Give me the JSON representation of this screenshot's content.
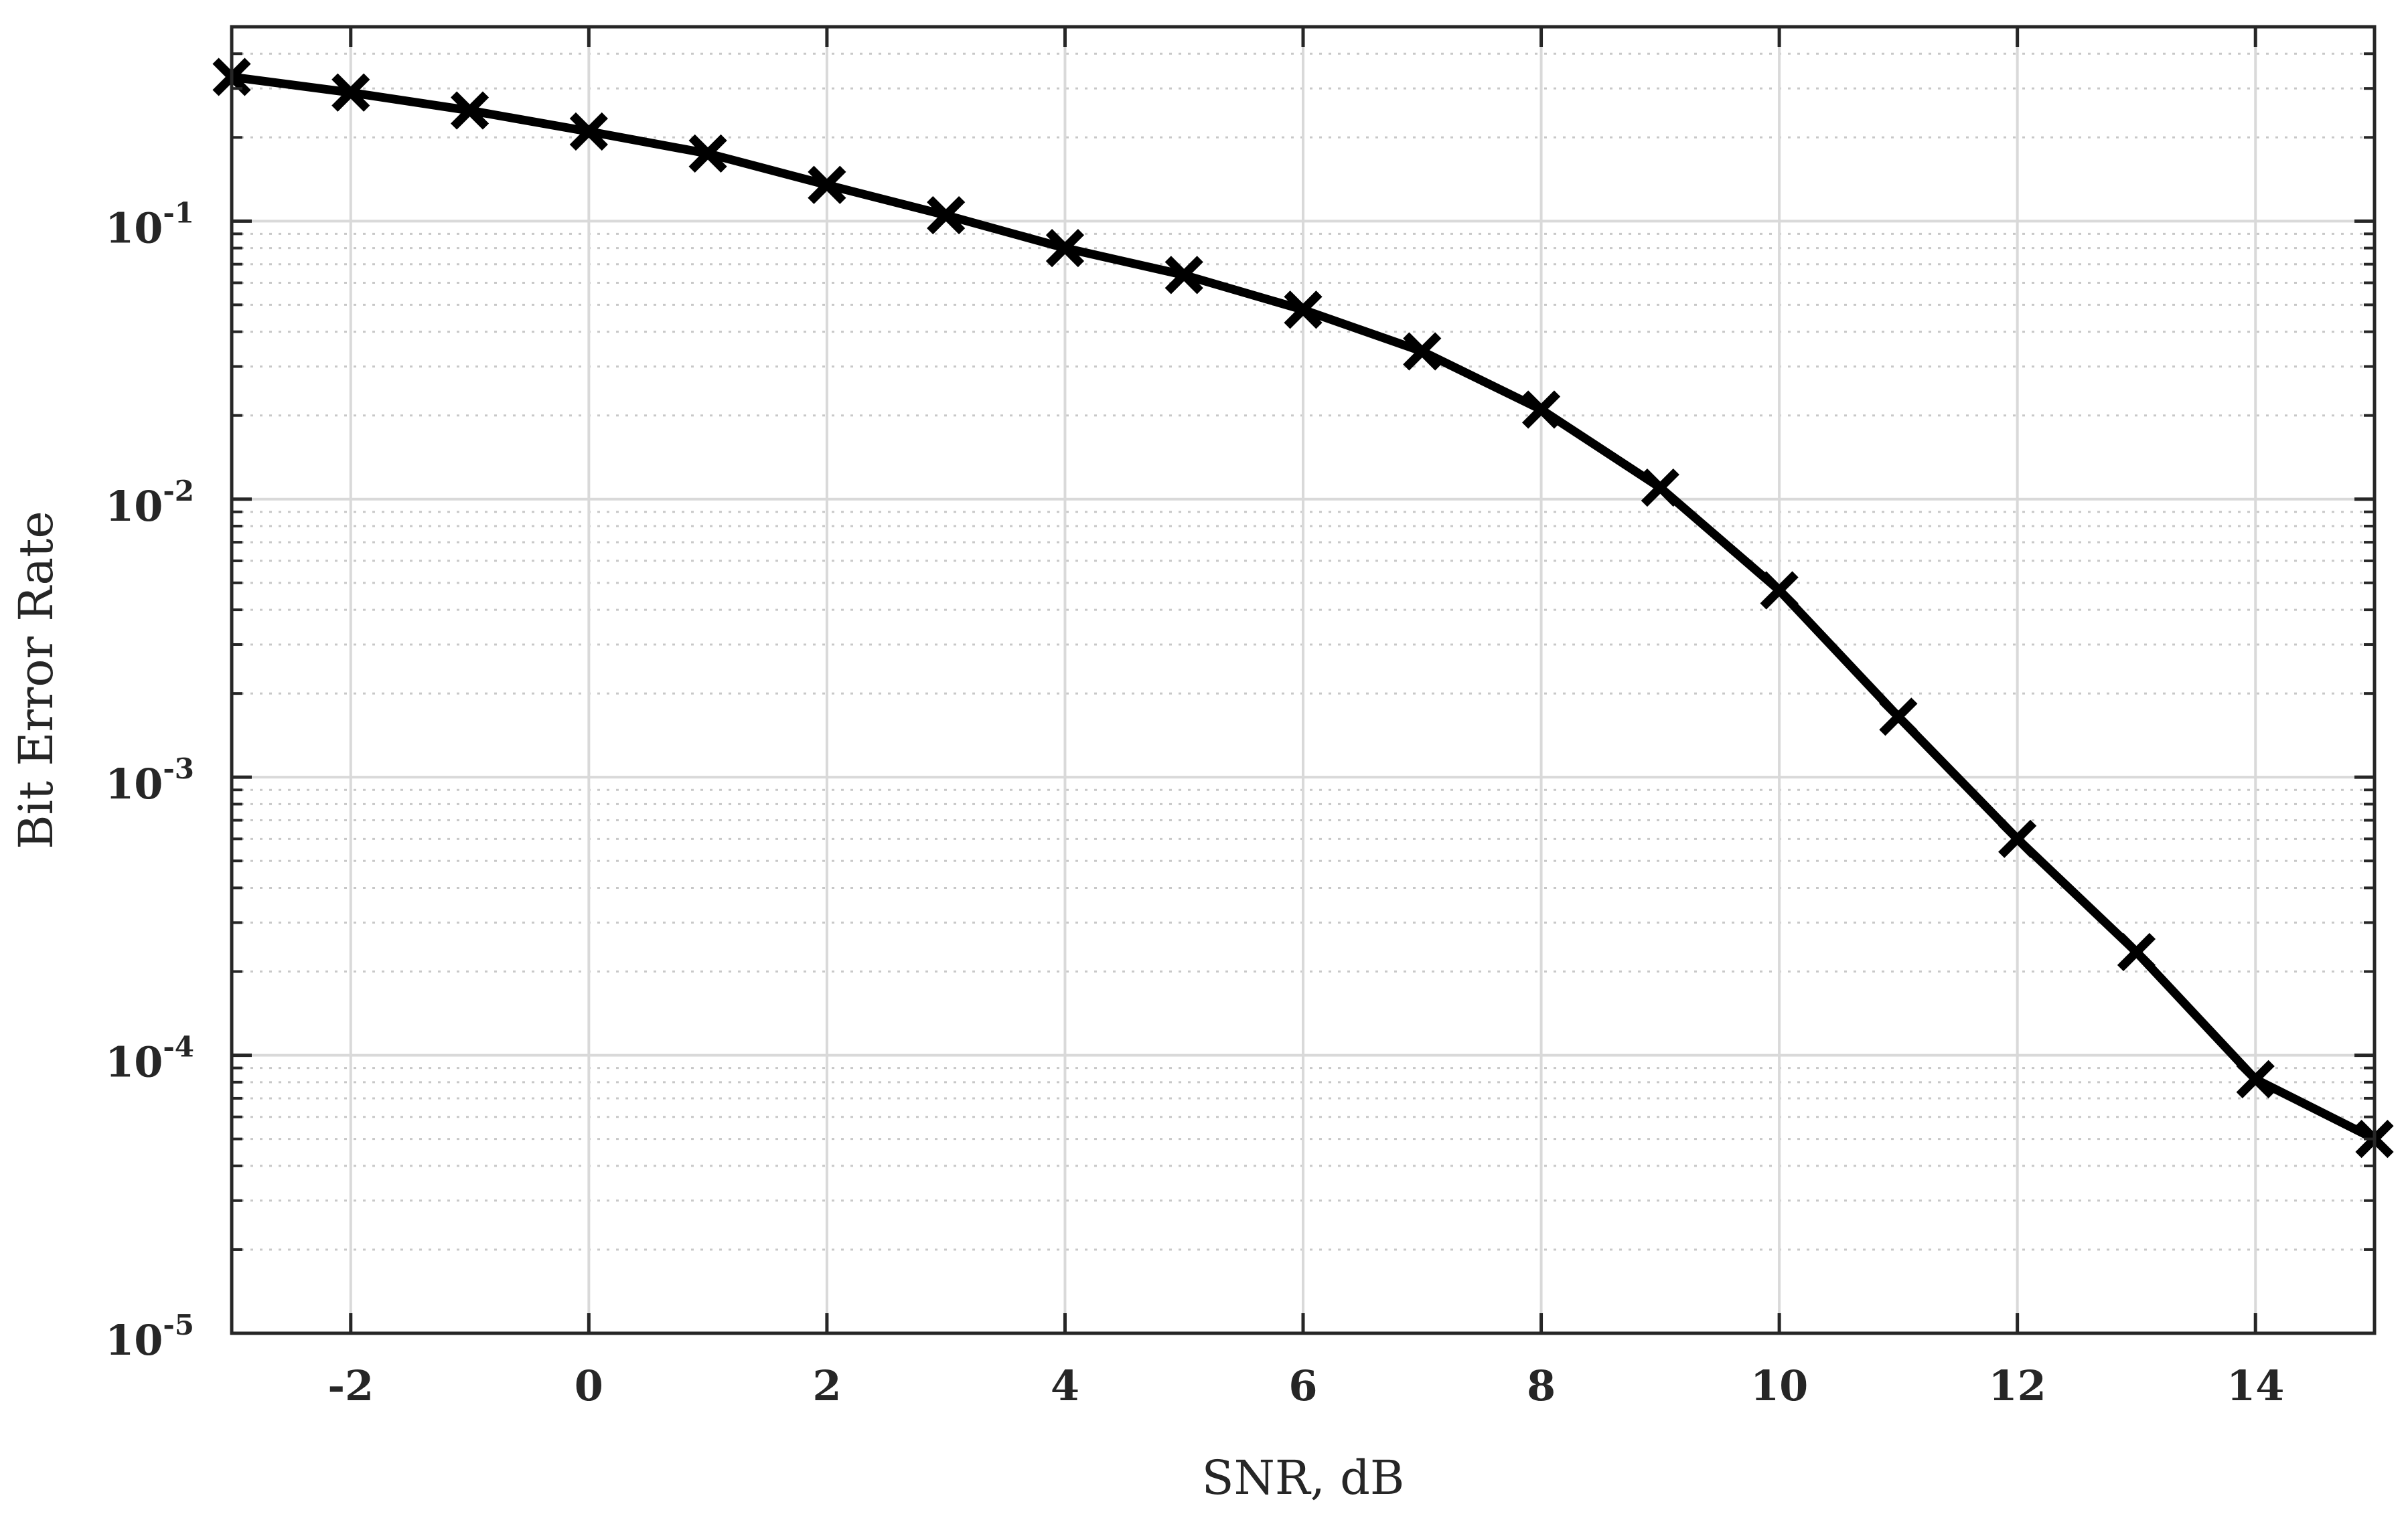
{
  "chart_data": {
    "type": "line",
    "xlabel": "SNR, dB",
    "ylabel": "Bit Error Rate",
    "xlim": [
      -3,
      15
    ],
    "ylim": [
      1e-05,
      0.5
    ],
    "y_scale": "log",
    "grid": true,
    "x_ticks": [
      -2,
      0,
      2,
      4,
      6,
      8,
      10,
      12,
      14
    ],
    "y_ticks": [
      {
        "base": "10",
        "exp": "-1",
        "value": 0.1
      },
      {
        "base": "10",
        "exp": "-2",
        "value": 0.01
      },
      {
        "base": "10",
        "exp": "-3",
        "value": 0.001
      },
      {
        "base": "10",
        "exp": "-4",
        "value": 0.0001
      },
      {
        "base": "10",
        "exp": "-5",
        "value": 1e-05
      }
    ],
    "series": [
      {
        "marker": "x",
        "color": "#000000",
        "x": [
          -3,
          -2,
          -1,
          0,
          1,
          2,
          3,
          4,
          5,
          6,
          7,
          8,
          9,
          10,
          11,
          12,
          13,
          14,
          15
        ],
        "y": [
          0.33,
          0.29,
          0.25,
          0.21,
          0.175,
          0.135,
          0.105,
          0.08,
          0.064,
          0.048,
          0.034,
          0.021,
          0.011,
          0.0047,
          0.00165,
          0.0006,
          0.000235,
          8.2e-05,
          5e-05
        ]
      }
    ]
  }
}
